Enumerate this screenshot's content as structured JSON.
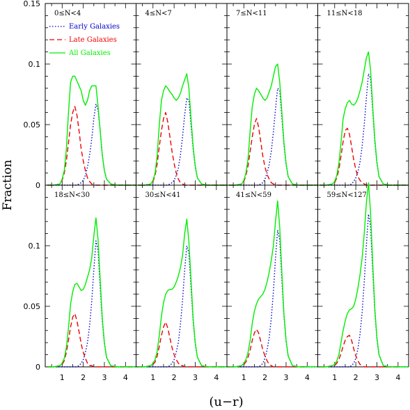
{
  "chart_data": {
    "type": "line",
    "xlabel": "(u−r)",
    "ylabel": "Fraction",
    "xlim": [
      0.2,
      4.5
    ],
    "ylim": [
      0,
      0.15
    ],
    "x_ticks": [
      "1",
      "2",
      "3",
      "4"
    ],
    "y_ticks": [
      "0",
      "0.05",
      "0.1",
      "0.15"
    ],
    "legend": [
      {
        "name": "Early Galaxies",
        "color": "#0000cc",
        "style": "dotted"
      },
      {
        "name": "Late Galaxies",
        "color": "#ee0000",
        "style": "dashed"
      },
      {
        "name": "All Galaxies",
        "color": "#00ee00",
        "style": "solid"
      }
    ],
    "x": [
      0.3,
      0.6,
      0.9,
      1.0,
      1.1,
      1.2,
      1.3,
      1.4,
      1.5,
      1.6,
      1.7,
      1.8,
      1.9,
      2.0,
      2.1,
      2.2,
      2.3,
      2.4,
      2.5,
      2.6,
      2.7,
      2.8,
      2.9,
      3.0,
      3.1,
      3.3,
      3.6,
      4.0,
      4.5
    ],
    "panels": [
      {
        "label": "0≤N<4",
        "early": [
          0,
          0,
          0,
          0,
          0,
          0,
          0,
          0,
          0,
          0,
          0,
          0.001,
          0.002,
          0.004,
          0.008,
          0.015,
          0.025,
          0.038,
          0.055,
          0.067,
          0.062,
          0.045,
          0.025,
          0.012,
          0.005,
          0.001,
          0,
          0,
          0
        ],
        "late": [
          0,
          0,
          0.001,
          0.004,
          0.01,
          0.02,
          0.035,
          0.05,
          0.06,
          0.065,
          0.058,
          0.045,
          0.03,
          0.02,
          0.012,
          0.006,
          0.003,
          0.001,
          0,
          0,
          0,
          0,
          0,
          0,
          0,
          0,
          0,
          0,
          0
        ],
        "all": [
          0,
          0,
          0.001,
          0.005,
          0.012,
          0.03,
          0.06,
          0.085,
          0.09,
          0.09,
          0.086,
          0.082,
          0.078,
          0.07,
          0.066,
          0.07,
          0.078,
          0.082,
          0.082,
          0.082,
          0.065,
          0.045,
          0.025,
          0.012,
          0.005,
          0.001,
          0,
          0,
          0
        ]
      },
      {
        "label": "4≤N<7",
        "early": [
          0,
          0,
          0,
          0,
          0,
          0,
          0,
          0,
          0,
          0,
          0,
          0.001,
          0.002,
          0.004,
          0.008,
          0.014,
          0.025,
          0.04,
          0.058,
          0.072,
          0.07,
          0.05,
          0.03,
          0.015,
          0.006,
          0.001,
          0,
          0,
          0
        ],
        "late": [
          0,
          0,
          0.001,
          0.003,
          0.008,
          0.018,
          0.032,
          0.045,
          0.055,
          0.06,
          0.052,
          0.04,
          0.028,
          0.018,
          0.01,
          0.005,
          0.002,
          0.001,
          0,
          0,
          0,
          0,
          0,
          0,
          0,
          0,
          0,
          0,
          0
        ],
        "all": [
          0,
          0,
          0.001,
          0.004,
          0.01,
          0.025,
          0.05,
          0.07,
          0.078,
          0.082,
          0.08,
          0.077,
          0.075,
          0.072,
          0.07,
          0.072,
          0.076,
          0.082,
          0.087,
          0.092,
          0.08,
          0.055,
          0.032,
          0.016,
          0.006,
          0.001,
          0,
          0,
          0
        ]
      },
      {
        "label": "7≤N<11",
        "early": [
          0,
          0,
          0,
          0,
          0,
          0,
          0,
          0,
          0,
          0,
          0,
          0.001,
          0.002,
          0.005,
          0.01,
          0.017,
          0.028,
          0.044,
          0.063,
          0.08,
          0.078,
          0.056,
          0.033,
          0.017,
          0.007,
          0.001,
          0,
          0,
          0
        ],
        "late": [
          0,
          0,
          0.001,
          0.003,
          0.008,
          0.016,
          0.028,
          0.04,
          0.05,
          0.055,
          0.048,
          0.036,
          0.024,
          0.015,
          0.009,
          0.005,
          0.002,
          0.001,
          0,
          0,
          0,
          0,
          0,
          0,
          0,
          0,
          0,
          0,
          0
        ],
        "all": [
          0,
          0,
          0.001,
          0.004,
          0.01,
          0.022,
          0.045,
          0.065,
          0.075,
          0.08,
          0.078,
          0.075,
          0.072,
          0.07,
          0.072,
          0.077,
          0.082,
          0.09,
          0.098,
          0.1,
          0.085,
          0.06,
          0.035,
          0.018,
          0.007,
          0.001,
          0,
          0,
          0
        ]
      },
      {
        "label": "11≤N<18",
        "early": [
          0,
          0,
          0,
          0,
          0,
          0,
          0,
          0,
          0,
          0,
          0,
          0.001,
          0.003,
          0.006,
          0.011,
          0.019,
          0.032,
          0.05,
          0.072,
          0.092,
          0.088,
          0.062,
          0.036,
          0.018,
          0.007,
          0.001,
          0,
          0,
          0
        ],
        "late": [
          0,
          0,
          0.001,
          0.002,
          0.006,
          0.013,
          0.024,
          0.036,
          0.045,
          0.047,
          0.042,
          0.032,
          0.021,
          0.013,
          0.007,
          0.004,
          0.002,
          0.001,
          0,
          0,
          0,
          0,
          0,
          0,
          0,
          0,
          0,
          0,
          0
        ],
        "all": [
          0,
          0,
          0.001,
          0.003,
          0.008,
          0.018,
          0.035,
          0.055,
          0.063,
          0.068,
          0.07,
          0.067,
          0.066,
          0.068,
          0.072,
          0.078,
          0.085,
          0.095,
          0.105,
          0.11,
          0.095,
          0.065,
          0.038,
          0.019,
          0.007,
          0.001,
          0,
          0,
          0
        ]
      },
      {
        "label": "18≤N<30",
        "early": [
          0,
          0,
          0,
          0,
          0,
          0,
          0,
          0,
          0,
          0,
          0,
          0.001,
          0.003,
          0.006,
          0.012,
          0.02,
          0.034,
          0.054,
          0.08,
          0.104,
          0.096,
          0.066,
          0.038,
          0.019,
          0.008,
          0.001,
          0,
          0,
          0
        ],
        "late": [
          0,
          0,
          0.001,
          0.002,
          0.005,
          0.012,
          0.022,
          0.033,
          0.041,
          0.044,
          0.038,
          0.029,
          0.019,
          0.012,
          0.007,
          0.003,
          0.001,
          0.001,
          0,
          0,
          0,
          0,
          0,
          0,
          0,
          0,
          0,
          0,
          0
        ],
        "all": [
          0,
          0,
          0.001,
          0.003,
          0.007,
          0.016,
          0.032,
          0.052,
          0.062,
          0.068,
          0.069,
          0.066,
          0.063,
          0.064,
          0.068,
          0.074,
          0.08,
          0.09,
          0.108,
          0.123,
          0.105,
          0.072,
          0.04,
          0.02,
          0.008,
          0.001,
          0,
          0,
          0
        ]
      },
      {
        "label": "30≤N<41",
        "early": [
          0,
          0,
          0,
          0,
          0,
          0,
          0,
          0,
          0,
          0,
          0,
          0.001,
          0.003,
          0.006,
          0.012,
          0.02,
          0.035,
          0.055,
          0.08,
          0.1,
          0.094,
          0.066,
          0.038,
          0.019,
          0.008,
          0.001,
          0,
          0,
          0
        ],
        "late": [
          0,
          0,
          0.001,
          0.002,
          0.004,
          0.009,
          0.017,
          0.026,
          0.033,
          0.037,
          0.032,
          0.024,
          0.016,
          0.01,
          0.006,
          0.003,
          0.001,
          0.001,
          0,
          0,
          0,
          0,
          0,
          0,
          0,
          0,
          0,
          0,
          0
        ],
        "all": [
          0,
          0,
          0.001,
          0.003,
          0.006,
          0.013,
          0.026,
          0.042,
          0.053,
          0.06,
          0.063,
          0.064,
          0.064,
          0.066,
          0.07,
          0.075,
          0.082,
          0.092,
          0.11,
          0.122,
          0.103,
          0.072,
          0.04,
          0.02,
          0.008,
          0.001,
          0,
          0,
          0
        ]
      },
      {
        "label": "41≤N<59",
        "early": [
          0,
          0,
          0,
          0,
          0,
          0,
          0,
          0,
          0,
          0,
          0,
          0.001,
          0.003,
          0.007,
          0.014,
          0.024,
          0.04,
          0.062,
          0.09,
          0.113,
          0.105,
          0.072,
          0.042,
          0.021,
          0.009,
          0.001,
          0,
          0,
          0
        ],
        "late": [
          0,
          0,
          0.001,
          0.002,
          0.004,
          0.008,
          0.014,
          0.022,
          0.028,
          0.031,
          0.028,
          0.021,
          0.014,
          0.009,
          0.005,
          0.002,
          0.001,
          0,
          0,
          0,
          0,
          0,
          0,
          0,
          0,
          0,
          0,
          0
        ],
        "all": [
          0,
          0,
          0.001,
          0.003,
          0.006,
          0.012,
          0.022,
          0.036,
          0.046,
          0.052,
          0.056,
          0.058,
          0.06,
          0.064,
          0.07,
          0.078,
          0.088,
          0.1,
          0.12,
          0.137,
          0.115,
          0.078,
          0.043,
          0.022,
          0.009,
          0.001,
          0,
          0,
          0
        ]
      },
      {
        "label": "59≤N<127",
        "early": [
          0,
          0,
          0,
          0,
          0,
          0,
          0,
          0,
          0,
          0,
          0,
          0.001,
          0.003,
          0.007,
          0.015,
          0.027,
          0.045,
          0.07,
          0.1,
          0.126,
          0.116,
          0.08,
          0.046,
          0.023,
          0.01,
          0.001,
          0,
          0,
          0
        ],
        "late": [
          0,
          0,
          0.001,
          0.001,
          0.003,
          0.006,
          0.011,
          0.017,
          0.022,
          0.025,
          0.026,
          0.022,
          0.015,
          0.009,
          0.005,
          0.002,
          0.001,
          0,
          0,
          0,
          0,
          0,
          0,
          0,
          0,
          0,
          0,
          0
        ],
        "all": [
          0,
          0,
          0.001,
          0.002,
          0.005,
          0.01,
          0.02,
          0.03,
          0.038,
          0.044,
          0.047,
          0.048,
          0.05,
          0.056,
          0.065,
          0.076,
          0.09,
          0.11,
          0.135,
          0.152,
          0.127,
          0.086,
          0.048,
          0.024,
          0.01,
          0.001,
          0,
          0,
          0
        ]
      }
    ]
  }
}
